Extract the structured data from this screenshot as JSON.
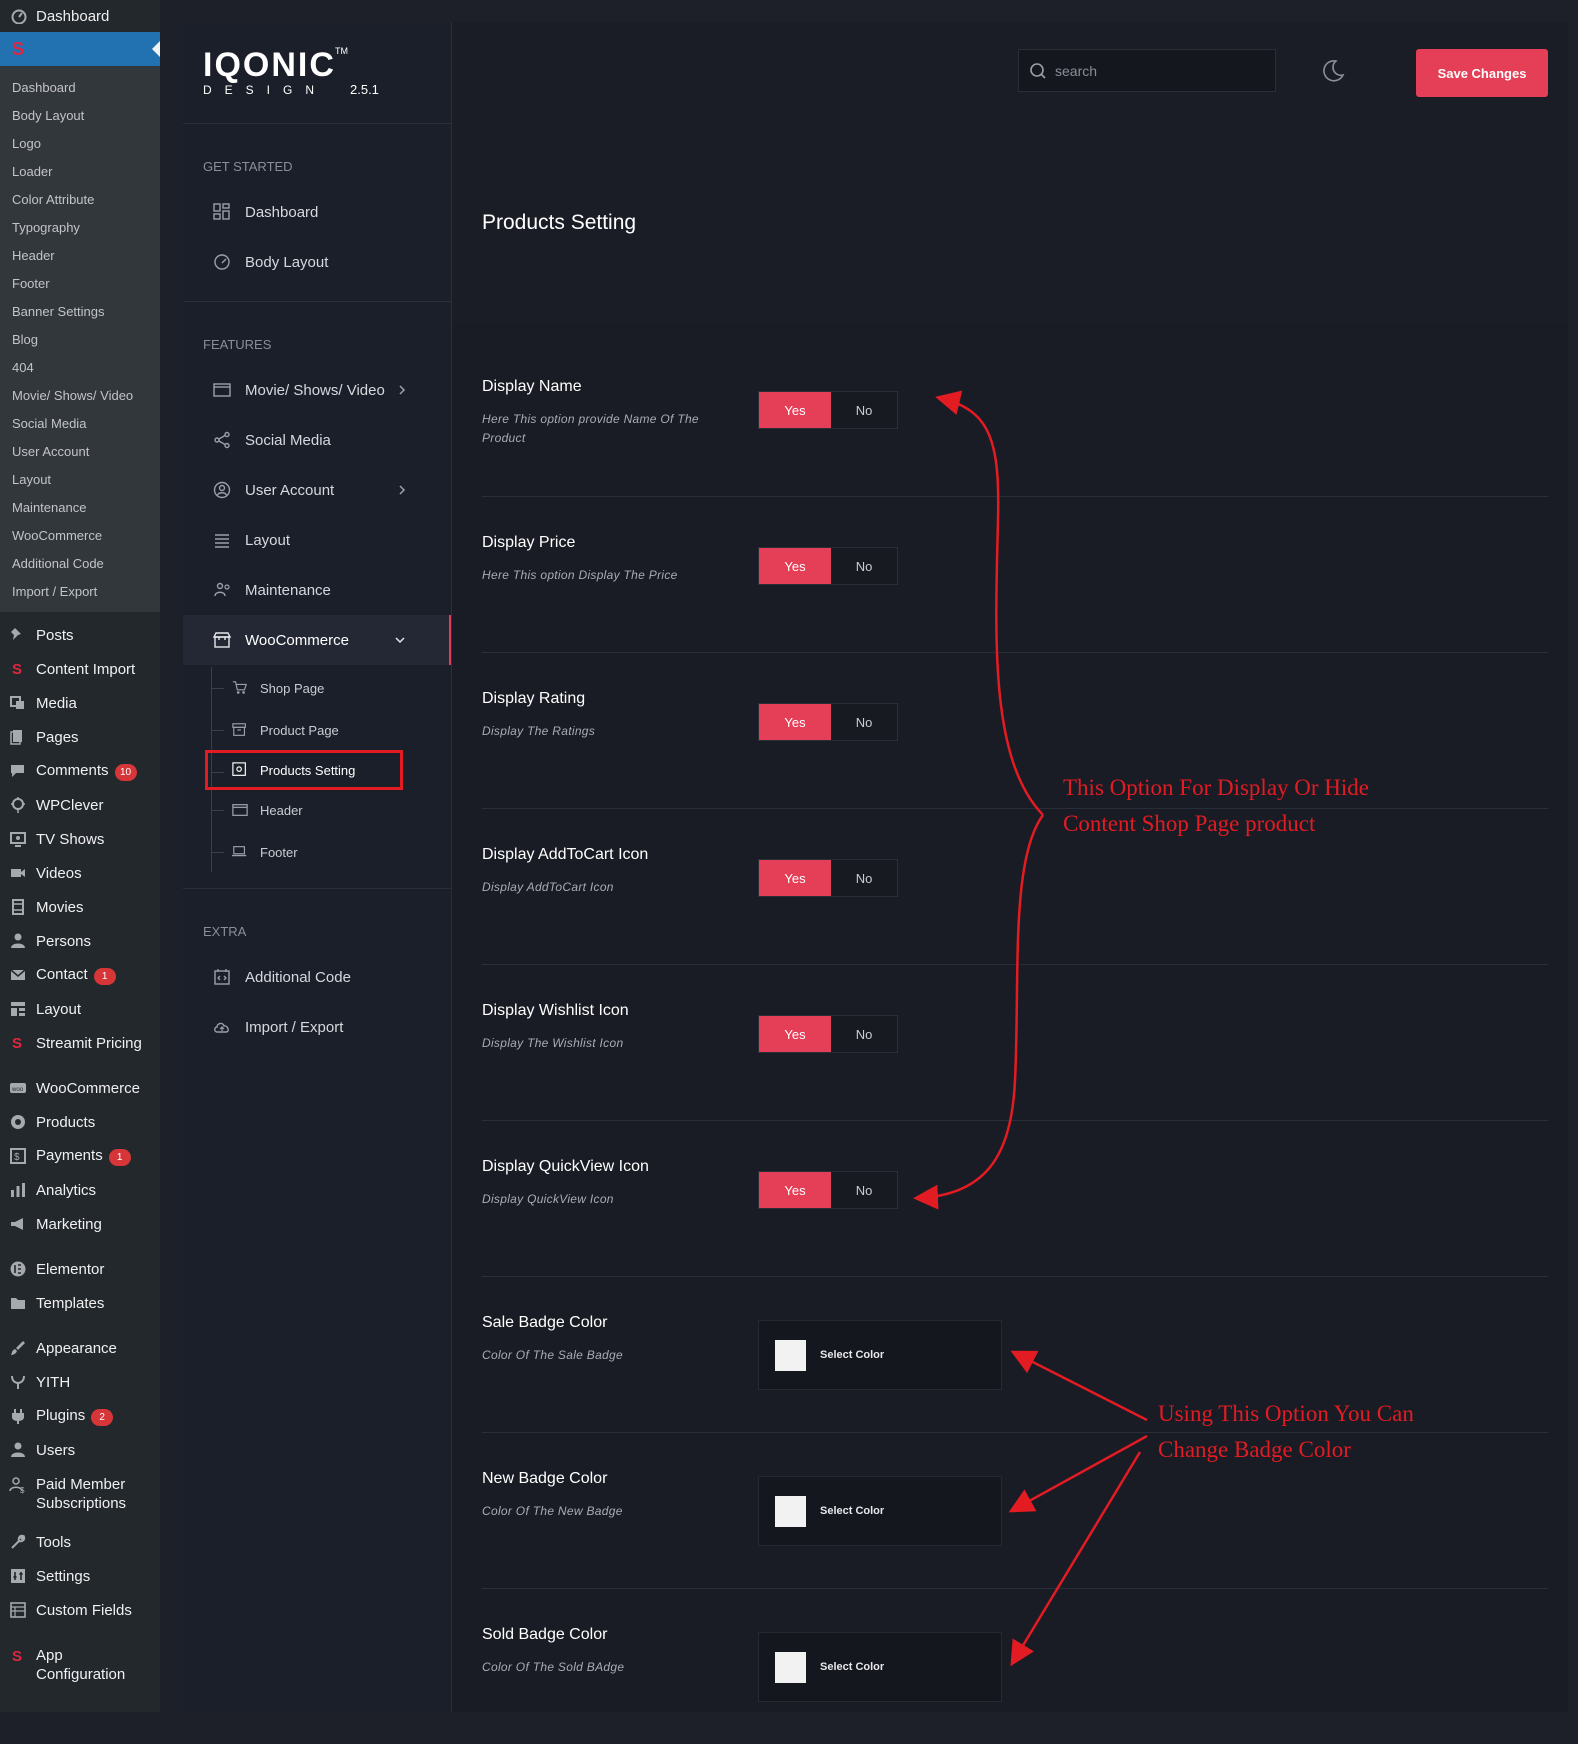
{
  "wp_sidebar": {
    "top_item": "Dashboard",
    "active_icon": "S",
    "submenu": [
      "Dashboard",
      "Body Layout",
      "Logo",
      "Loader",
      "Color Attribute",
      "Typography",
      "Header",
      "Footer",
      "Banner Settings",
      "Blog",
      "404",
      "Movie/ Shows/ Video",
      "Social Media",
      "User Account",
      "Layout",
      "Maintenance",
      "WooCommerce",
      "Additional Code",
      "Import / Export"
    ],
    "menu": [
      {
        "label": "Posts",
        "icon": "pin-icon"
      },
      {
        "label": "Content Import",
        "icon": "streamit-icon"
      },
      {
        "label": "Media",
        "icon": "media-icon"
      },
      {
        "label": "Pages",
        "icon": "pages-icon"
      },
      {
        "label": "Comments",
        "icon": "comments-icon",
        "badge": "10"
      },
      {
        "label": "WPClever",
        "icon": "wpclever-icon"
      },
      {
        "label": "TV Shows",
        "icon": "tv-icon"
      },
      {
        "label": "Videos",
        "icon": "video-icon"
      },
      {
        "label": "Movies",
        "icon": "film-icon"
      },
      {
        "label": "Persons",
        "icon": "person-icon"
      },
      {
        "label": "Contact",
        "icon": "mail-icon",
        "badge": "1"
      },
      {
        "label": "Layout",
        "icon": "layout-icon"
      },
      {
        "label": "Streamit Pricing",
        "icon": "streamit-icon",
        "gap_after": true
      },
      {
        "label": "WooCommerce",
        "icon": "woo-icon"
      },
      {
        "label": "Products",
        "icon": "products-icon"
      },
      {
        "label": "Payments",
        "icon": "payments-icon",
        "badge": "1"
      },
      {
        "label": "Analytics",
        "icon": "analytics-icon"
      },
      {
        "label": "Marketing",
        "icon": "megaphone-icon",
        "gap_after": true
      },
      {
        "label": "Elementor",
        "icon": "elementor-icon"
      },
      {
        "label": "Templates",
        "icon": "folder-icon",
        "gap_after": true
      },
      {
        "label": "Appearance",
        "icon": "brush-icon"
      },
      {
        "label": "YITH",
        "icon": "yith-icon"
      },
      {
        "label": "Plugins",
        "icon": "plugin-icon",
        "badge": "2"
      },
      {
        "label": "Users",
        "icon": "users-icon"
      },
      {
        "label": "Paid Member Subscriptions",
        "icon": "member-icon",
        "tall": true
      },
      {
        "label": "Tools",
        "icon": "wrench-icon"
      },
      {
        "label": "Settings",
        "icon": "settings-icon"
      },
      {
        "label": "Custom Fields",
        "icon": "fields-icon",
        "gap_after": true
      },
      {
        "label": "App Configuration",
        "icon": "streamit-icon",
        "tall": true
      }
    ]
  },
  "logo": {
    "text": "IQONIC",
    "tm": "TM",
    "sub": "DESIGN",
    "version": "2.5.1"
  },
  "nav": {
    "get_started": "GET STARTED",
    "features": "FEATURES",
    "extra": "EXTRA",
    "items_start": [
      {
        "label": "Dashboard",
        "icon": "grid-icon"
      },
      {
        "label": "Body Layout",
        "icon": "gauge-icon"
      }
    ],
    "items_features": [
      {
        "label": "Movie/ Shows/ Video",
        "icon": "window-icon",
        "chev": true
      },
      {
        "label": "Social Media",
        "icon": "share-icon"
      },
      {
        "label": "User Account",
        "icon": "user-circle-icon",
        "chev": true
      },
      {
        "label": "Layout",
        "icon": "lines-icon"
      },
      {
        "label": "Maintenance",
        "icon": "maintenance-icon"
      },
      {
        "label": "WooCommerce",
        "icon": "store-icon",
        "chev_down": true,
        "active": true
      }
    ],
    "sub_items": [
      {
        "label": "Shop Page",
        "icon": "cart-icon"
      },
      {
        "label": "Product Page",
        "icon": "archive-icon"
      },
      {
        "label": "Products Setting",
        "icon": "gear-box-icon",
        "highlight": true
      },
      {
        "label": "Header",
        "icon": "window-icon"
      },
      {
        "label": "Footer",
        "icon": "laptop-icon"
      }
    ],
    "items_extra": [
      {
        "label": "Additional Code",
        "icon": "code-icon"
      },
      {
        "label": "Import / Export",
        "icon": "cloud-icon"
      }
    ]
  },
  "header": {
    "search_placeholder": "search",
    "save_label": "Save Changes",
    "theme_icon": "moon-icon"
  },
  "page_title": "Products Setting",
  "settings": [
    {
      "label": "Display Name",
      "desc": "Here This option provide Name Of The Product",
      "type": "toggle",
      "yes": "Yes",
      "no": "No",
      "value": "Yes"
    },
    {
      "label": "Display Price",
      "desc": "Here This option Display The Price",
      "type": "toggle",
      "yes": "Yes",
      "no": "No",
      "value": "Yes"
    },
    {
      "label": "Display Rating",
      "desc": "Display The Ratings",
      "type": "toggle",
      "yes": "Yes",
      "no": "No",
      "value": "Yes"
    },
    {
      "label": "Display AddToCart Icon",
      "desc": "Display AddToCart Icon",
      "type": "toggle",
      "yes": "Yes",
      "no": "No",
      "value": "Yes"
    },
    {
      "label": "Display Wishlist Icon",
      "desc": "Display The Wishlist Icon",
      "type": "toggle",
      "yes": "Yes",
      "no": "No",
      "value": "Yes"
    },
    {
      "label": "Display QuickView Icon",
      "desc": "Display QuickView Icon",
      "type": "toggle",
      "yes": "Yes",
      "no": "No",
      "value": "Yes"
    },
    {
      "label": "Sale Badge Color",
      "desc": "Color Of The Sale Badge",
      "type": "color",
      "button": "Select Color"
    },
    {
      "label": "New Badge Color",
      "desc": "Color Of The New Badge",
      "type": "color",
      "button": "Select Color"
    },
    {
      "label": "Sold Badge Color",
      "desc": "Color Of The Sold BAdge",
      "type": "color",
      "button": "Select Color"
    }
  ],
  "annotations": {
    "toggle_note": [
      "This Option For Display Or Hide",
      "Content Shop Page product"
    ],
    "color_note": [
      "Using This Option You Can",
      "Change Badge Color"
    ]
  },
  "colors": {
    "accent": "#e53e57",
    "annotation": "#e31b23",
    "wp_active": "#2271b1"
  }
}
